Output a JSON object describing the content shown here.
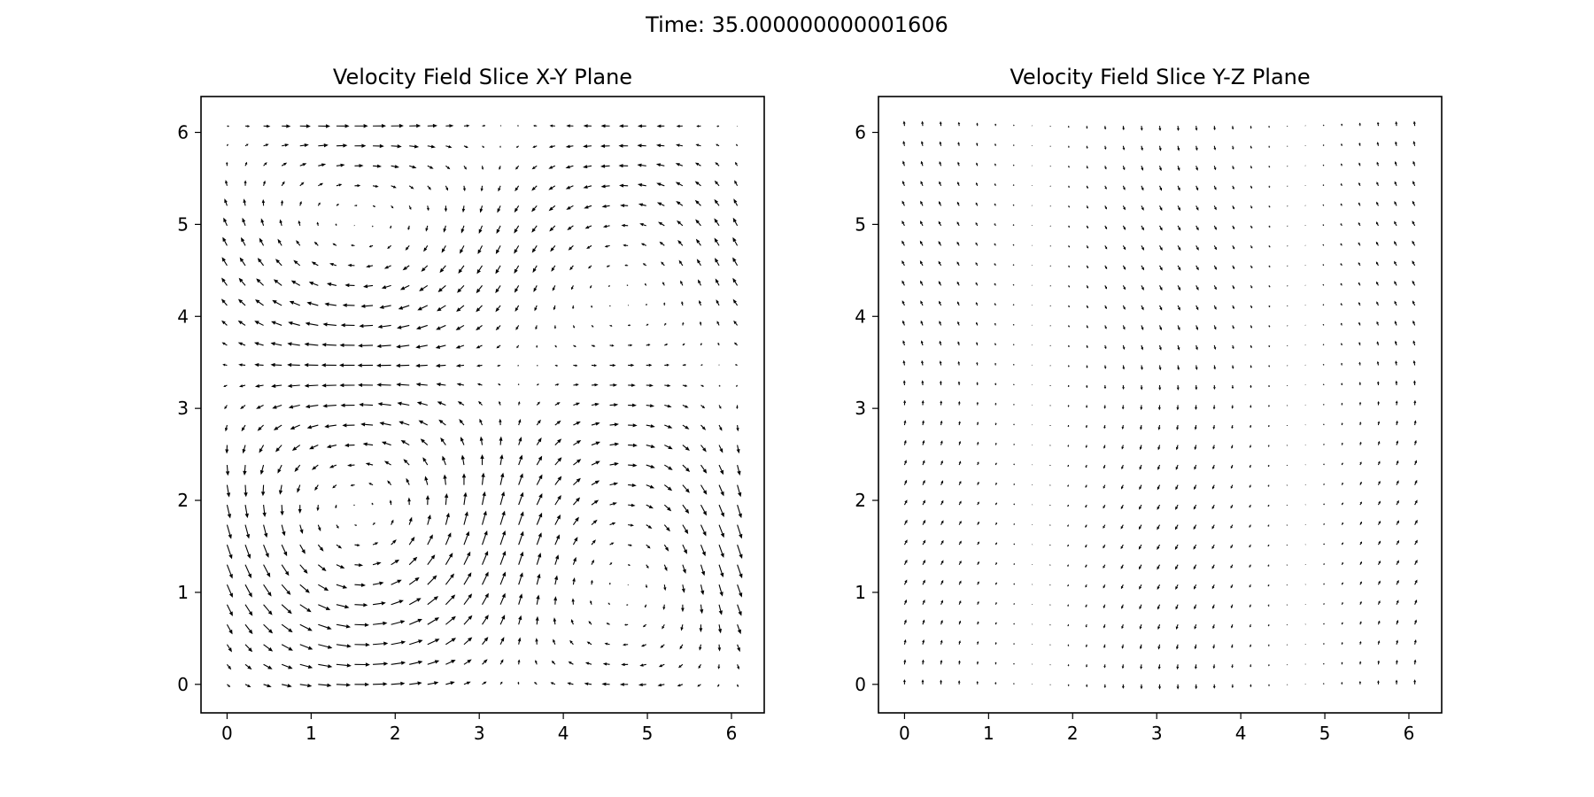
{
  "suptitle": "Time: 35.000000000001606",
  "chart_data": [
    {
      "type": "quiver",
      "title": "Velocity Field Slice X-Y Plane",
      "xlabel": "",
      "ylabel": "",
      "xlim": [
        -0.31,
        6.39
      ],
      "ylim": [
        -0.31,
        6.39
      ],
      "xticks": [
        0,
        1,
        2,
        3,
        4,
        5,
        6
      ],
      "yticks": [
        0,
        1,
        2,
        3,
        4,
        5,
        6
      ],
      "xtick_labels": [
        "0",
        "1",
        "2",
        "3",
        "4",
        "5",
        "6"
      ],
      "ytick_labels": [
        "0",
        "1",
        "2",
        "3",
        "4",
        "5",
        "6"
      ],
      "grid": false,
      "arrow_color": "#000000",
      "field": {
        "grid_points": 29,
        "range": [
          0,
          6.07
        ],
        "u": "sin(x)*cos(y) + 0.5*sin(y+0.6)",
        "v": "-cos(x)*sin(y) - 0.25*cos(x)",
        "description_note": "arrows sampled on a 29x29 grid"
      }
    },
    {
      "type": "quiver",
      "title": "Velocity Field Slice Y-Z Plane",
      "xlabel": "",
      "ylabel": "",
      "xlim": [
        -0.31,
        6.39
      ],
      "ylim": [
        -0.31,
        6.39
      ],
      "xticks": [
        0,
        1,
        2,
        3,
        4,
        5,
        6
      ],
      "yticks": [
        0,
        1,
        2,
        3,
        4,
        5,
        6
      ],
      "xtick_labels": [
        "0",
        "1",
        "2",
        "3",
        "4",
        "5",
        "6"
      ],
      "ytick_labels": [
        "0",
        "1",
        "2",
        "3",
        "4",
        "5",
        "6"
      ],
      "grid": false,
      "arrow_color": "#000000",
      "field": {
        "grid_points": 29,
        "range": [
          0,
          6.07
        ],
        "u": "0.25*sin(y)*cos(x)",
        "v": "0.45*cos(x)",
        "description_note": "arrows sampled on a 29x29 grid"
      }
    }
  ]
}
